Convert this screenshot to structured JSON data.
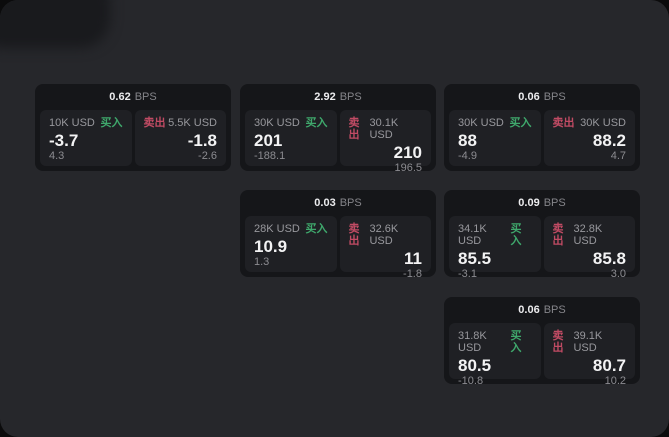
{
  "labels": {
    "bps_unit": "BPS",
    "buy": "买入",
    "sell": "卖出"
  },
  "colors": {
    "page_bg": "#26272b",
    "card_bg": "#151619",
    "panel_bg": "#1f2024",
    "buy_green": "#3fa86c",
    "sell_red": "#c14b64",
    "text_primary": "#f3f3f4",
    "text_muted": "#8c8c91"
  },
  "cards": [
    {
      "bps": "0.62",
      "buy": {
        "size": "10K USD",
        "value": "-3.7",
        "change": "4.3"
      },
      "sell": {
        "size": "5.5K USD",
        "value": "-1.8",
        "change": "-2.6"
      }
    },
    {
      "bps": "2.92",
      "buy": {
        "size": "30K USD",
        "value": "201",
        "change": "-188.1"
      },
      "sell": {
        "size": "30.1K USD",
        "value": "210",
        "change": "196.5"
      }
    },
    {
      "bps": "0.06",
      "buy": {
        "size": "30K USD",
        "value": "88",
        "change": "-4.9"
      },
      "sell": {
        "size": "30K USD",
        "value": "88.2",
        "change": "4.7"
      }
    },
    {
      "bps": "0.03",
      "buy": {
        "size": "28K USD",
        "value": "10.9",
        "change": "1.3"
      },
      "sell": {
        "size": "32.6K USD",
        "value": "11",
        "change": "-1.8"
      }
    },
    {
      "bps": "0.09",
      "buy": {
        "size": "34.1K USD",
        "value": "85.5",
        "change": "-3.1"
      },
      "sell": {
        "size": "32.8K USD",
        "value": "85.8",
        "change": "3.0"
      }
    },
    {
      "bps": "0.06",
      "buy": {
        "size": "31.8K USD",
        "value": "80.5",
        "change": "-10.8"
      },
      "sell": {
        "size": "39.1K USD",
        "value": "80.7",
        "change": "10.2"
      }
    }
  ]
}
